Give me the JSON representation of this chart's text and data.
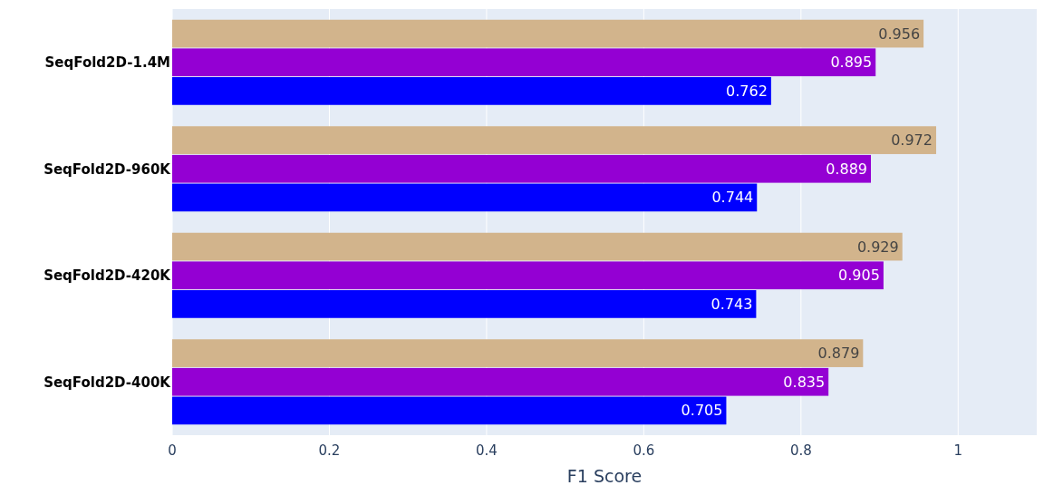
{
  "chart_data": {
    "type": "bar",
    "orientation": "horizontal",
    "xlabel": "F1 Score",
    "categories": [
      "SeqFold2D-1.4M",
      "SeqFold2D-960K",
      "SeqFold2D-420K",
      "SeqFold2D-400K"
    ],
    "series": [
      {
        "color": "#d2b48c",
        "values": [
          0.956,
          0.972,
          0.929,
          0.879
        ]
      },
      {
        "color": "#9400d3",
        "values": [
          0.895,
          0.889,
          0.905,
          0.835
        ]
      },
      {
        "color": "#0000ff",
        "values": [
          0.762,
          0.744,
          0.743,
          0.705
        ]
      }
    ],
    "xlim": [
      0,
      1.1
    ],
    "xticks": [
      0,
      0.2,
      0.4,
      0.6,
      0.8,
      1
    ],
    "grid": "x",
    "data_labels": true
  }
}
